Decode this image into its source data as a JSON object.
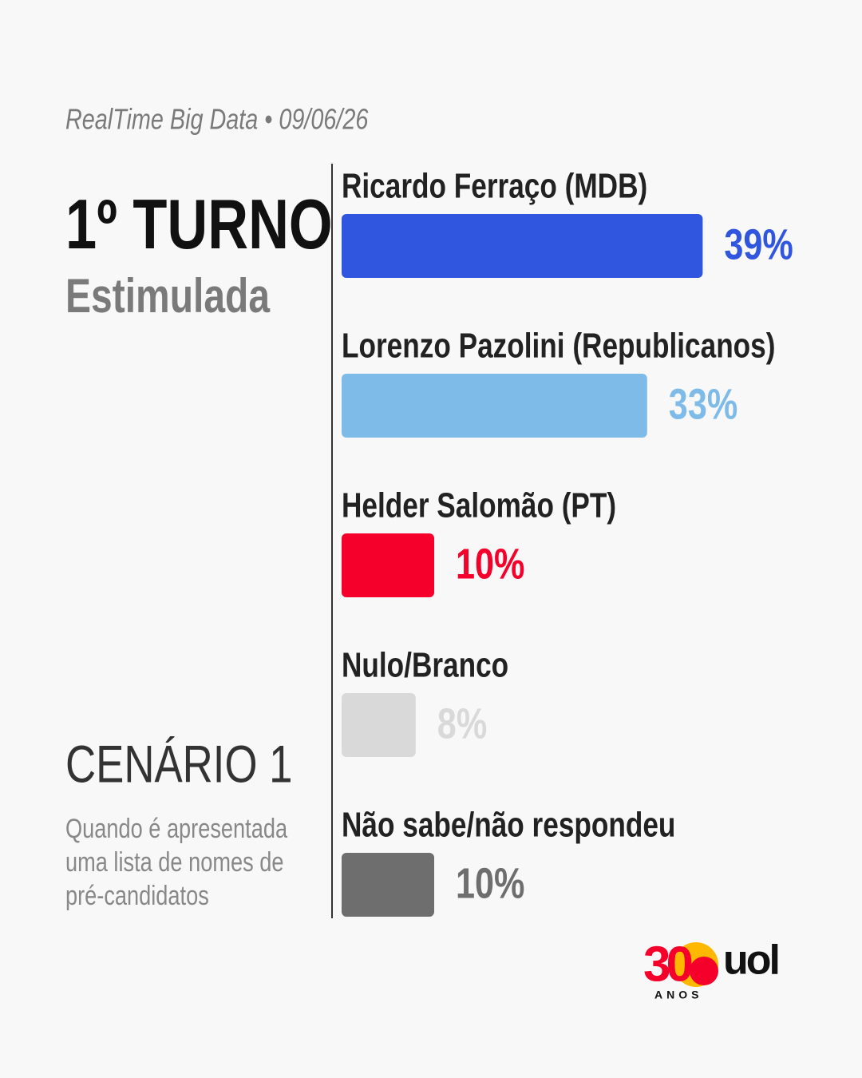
{
  "chart_data": {
    "type": "bar",
    "orientation": "horizontal",
    "source": "RealTime Big Data • 09/06/26",
    "title": "1º TURNO",
    "subtitle": "Estimulada",
    "scenario": "CENÁRIO 1",
    "description": [
      "Quando é apresentada",
      "uma lista de nomes de",
      "pré-candidatos"
    ],
    "categories": [
      "Ricardo Ferraço (MDB)",
      "Lorenzo Pazolini (Republicanos)",
      "Helder Salomão (PT)",
      "Nulo/Branco",
      "Não sabe/não respondeu"
    ],
    "values": [
      39,
      33,
      10,
      8,
      10
    ],
    "value_labels": [
      "39%",
      "33%",
      "10%",
      "8%",
      "10%"
    ],
    "colors": [
      "#3056e0",
      "#7fbbe8",
      "#f5002a",
      "#d9d9d9",
      "#6e6e6e"
    ]
  },
  "logo": {
    "number": "30",
    "caption": "ANOS",
    "brand": "uol"
  }
}
